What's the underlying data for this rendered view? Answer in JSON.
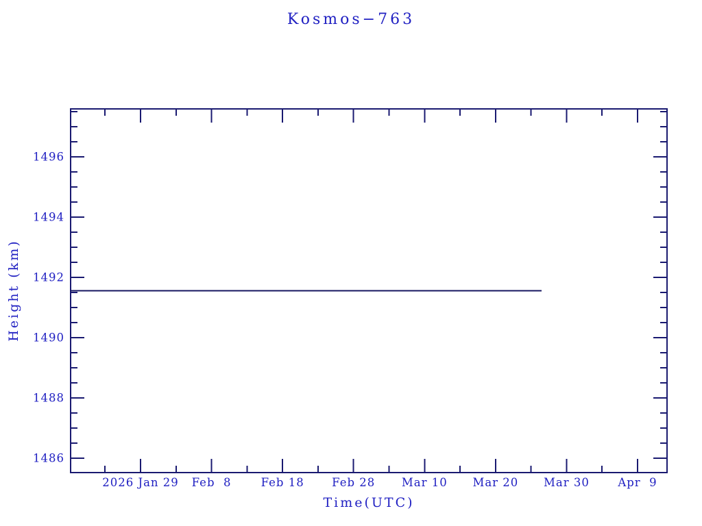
{
  "page": {
    "background": "#ffffff"
  },
  "chart_data": {
    "type": "line",
    "title": "Kosmos−763",
    "xlabel": "Time(UTC)",
    "ylabel": "Height (km)",
    "colors": {
      "text": "#2020c2",
      "axis": "#191970",
      "line": "#15155f",
      "background": "#ffffff"
    },
    "x_axis": {
      "label": "Time(UTC)",
      "unit": "day of year 2026",
      "range": [
        19.15,
        103.15
      ],
      "major_ticks": [
        29,
        39,
        49,
        59,
        69,
        79,
        89,
        99
      ],
      "major_tick_labels": [
        "2026 Jan 29",
        "Feb  8",
        "Feb 18",
        "Feb 28",
        "Mar 10",
        "Mar 20",
        "Mar 30",
        "Apr  9"
      ],
      "minor_ticks": [
        24,
        34,
        44,
        54,
        64,
        74,
        84,
        94
      ],
      "ticks_inward": true,
      "mirrored_top": true
    },
    "y_axis": {
      "label": "Height (km)",
      "range": [
        1485.52,
        1497.59
      ],
      "major_ticks": [
        1486,
        1488,
        1490,
        1492,
        1494,
        1496
      ],
      "major_tick_labels": [
        "1486",
        "1488",
        "1490",
        "1492",
        "1494",
        "1496"
      ],
      "minor_ticks": [
        1486.5,
        1487.0,
        1487.5,
        1488.5,
        1489.0,
        1489.5,
        1490.5,
        1491.0,
        1491.5,
        1492.5,
        1493.0,
        1493.5,
        1494.5,
        1495.0,
        1495.5,
        1496.5,
        1497.0,
        1497.5
      ],
      "ticks_inward": true,
      "mirrored_right": true
    },
    "grid": false,
    "legend": "none",
    "series": [
      {
        "points": [
          [
            19.15,
            1491.56
          ],
          [
            85.5,
            1491.56
          ]
        ]
      }
    ]
  }
}
